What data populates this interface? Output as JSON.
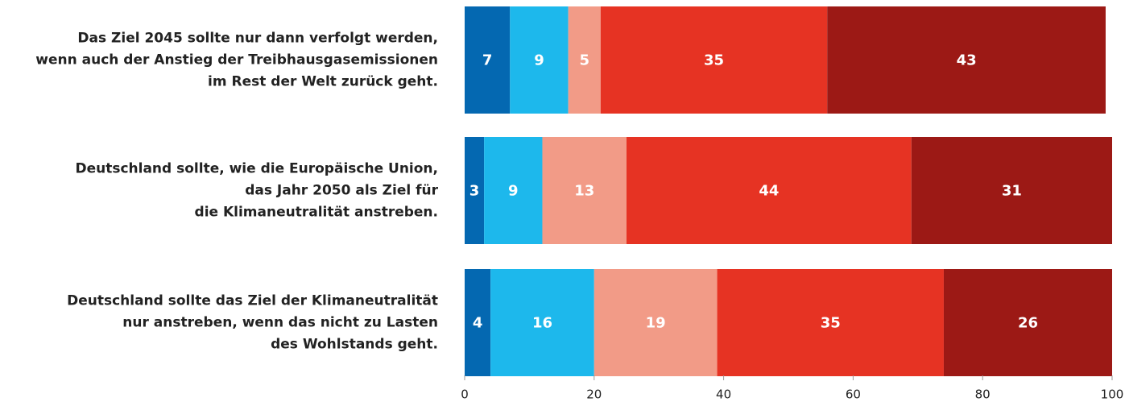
{
  "chart_data": {
    "type": "stacked-bar-horizontal",
    "categories": [
      "Das Ziel 2045 sollte nur dann verfolgt werden,\nwenn auch der Anstieg der Treibhausgasemissionen\nim Rest der Welt zurück geht.",
      "Deutschland sollte, wie die Europäische Union,\ndas Jahr 2050 als Ziel für\ndie Klimaneutralität anstreben.",
      "Deutschland sollte das Ziel der Klimaneutralität\nnur anstreben, wenn das nicht zu Lasten\ndes Wohlstands geht."
    ],
    "series": [
      {
        "color": "#0468b1",
        "values": [
          7,
          3,
          4
        ]
      },
      {
        "color": "#1db8ec",
        "values": [
          9,
          9,
          16
        ]
      },
      {
        "color": "#f29b87",
        "values": [
          5,
          13,
          19
        ]
      },
      {
        "color": "#e63323",
        "values": [
          35,
          44,
          35
        ]
      },
      {
        "color": "#9c1915",
        "values": [
          43,
          31,
          26
        ]
      }
    ],
    "xlim": [
      0,
      100
    ],
    "xticks": [
      0,
      20,
      40,
      60,
      80,
      100
    ]
  }
}
